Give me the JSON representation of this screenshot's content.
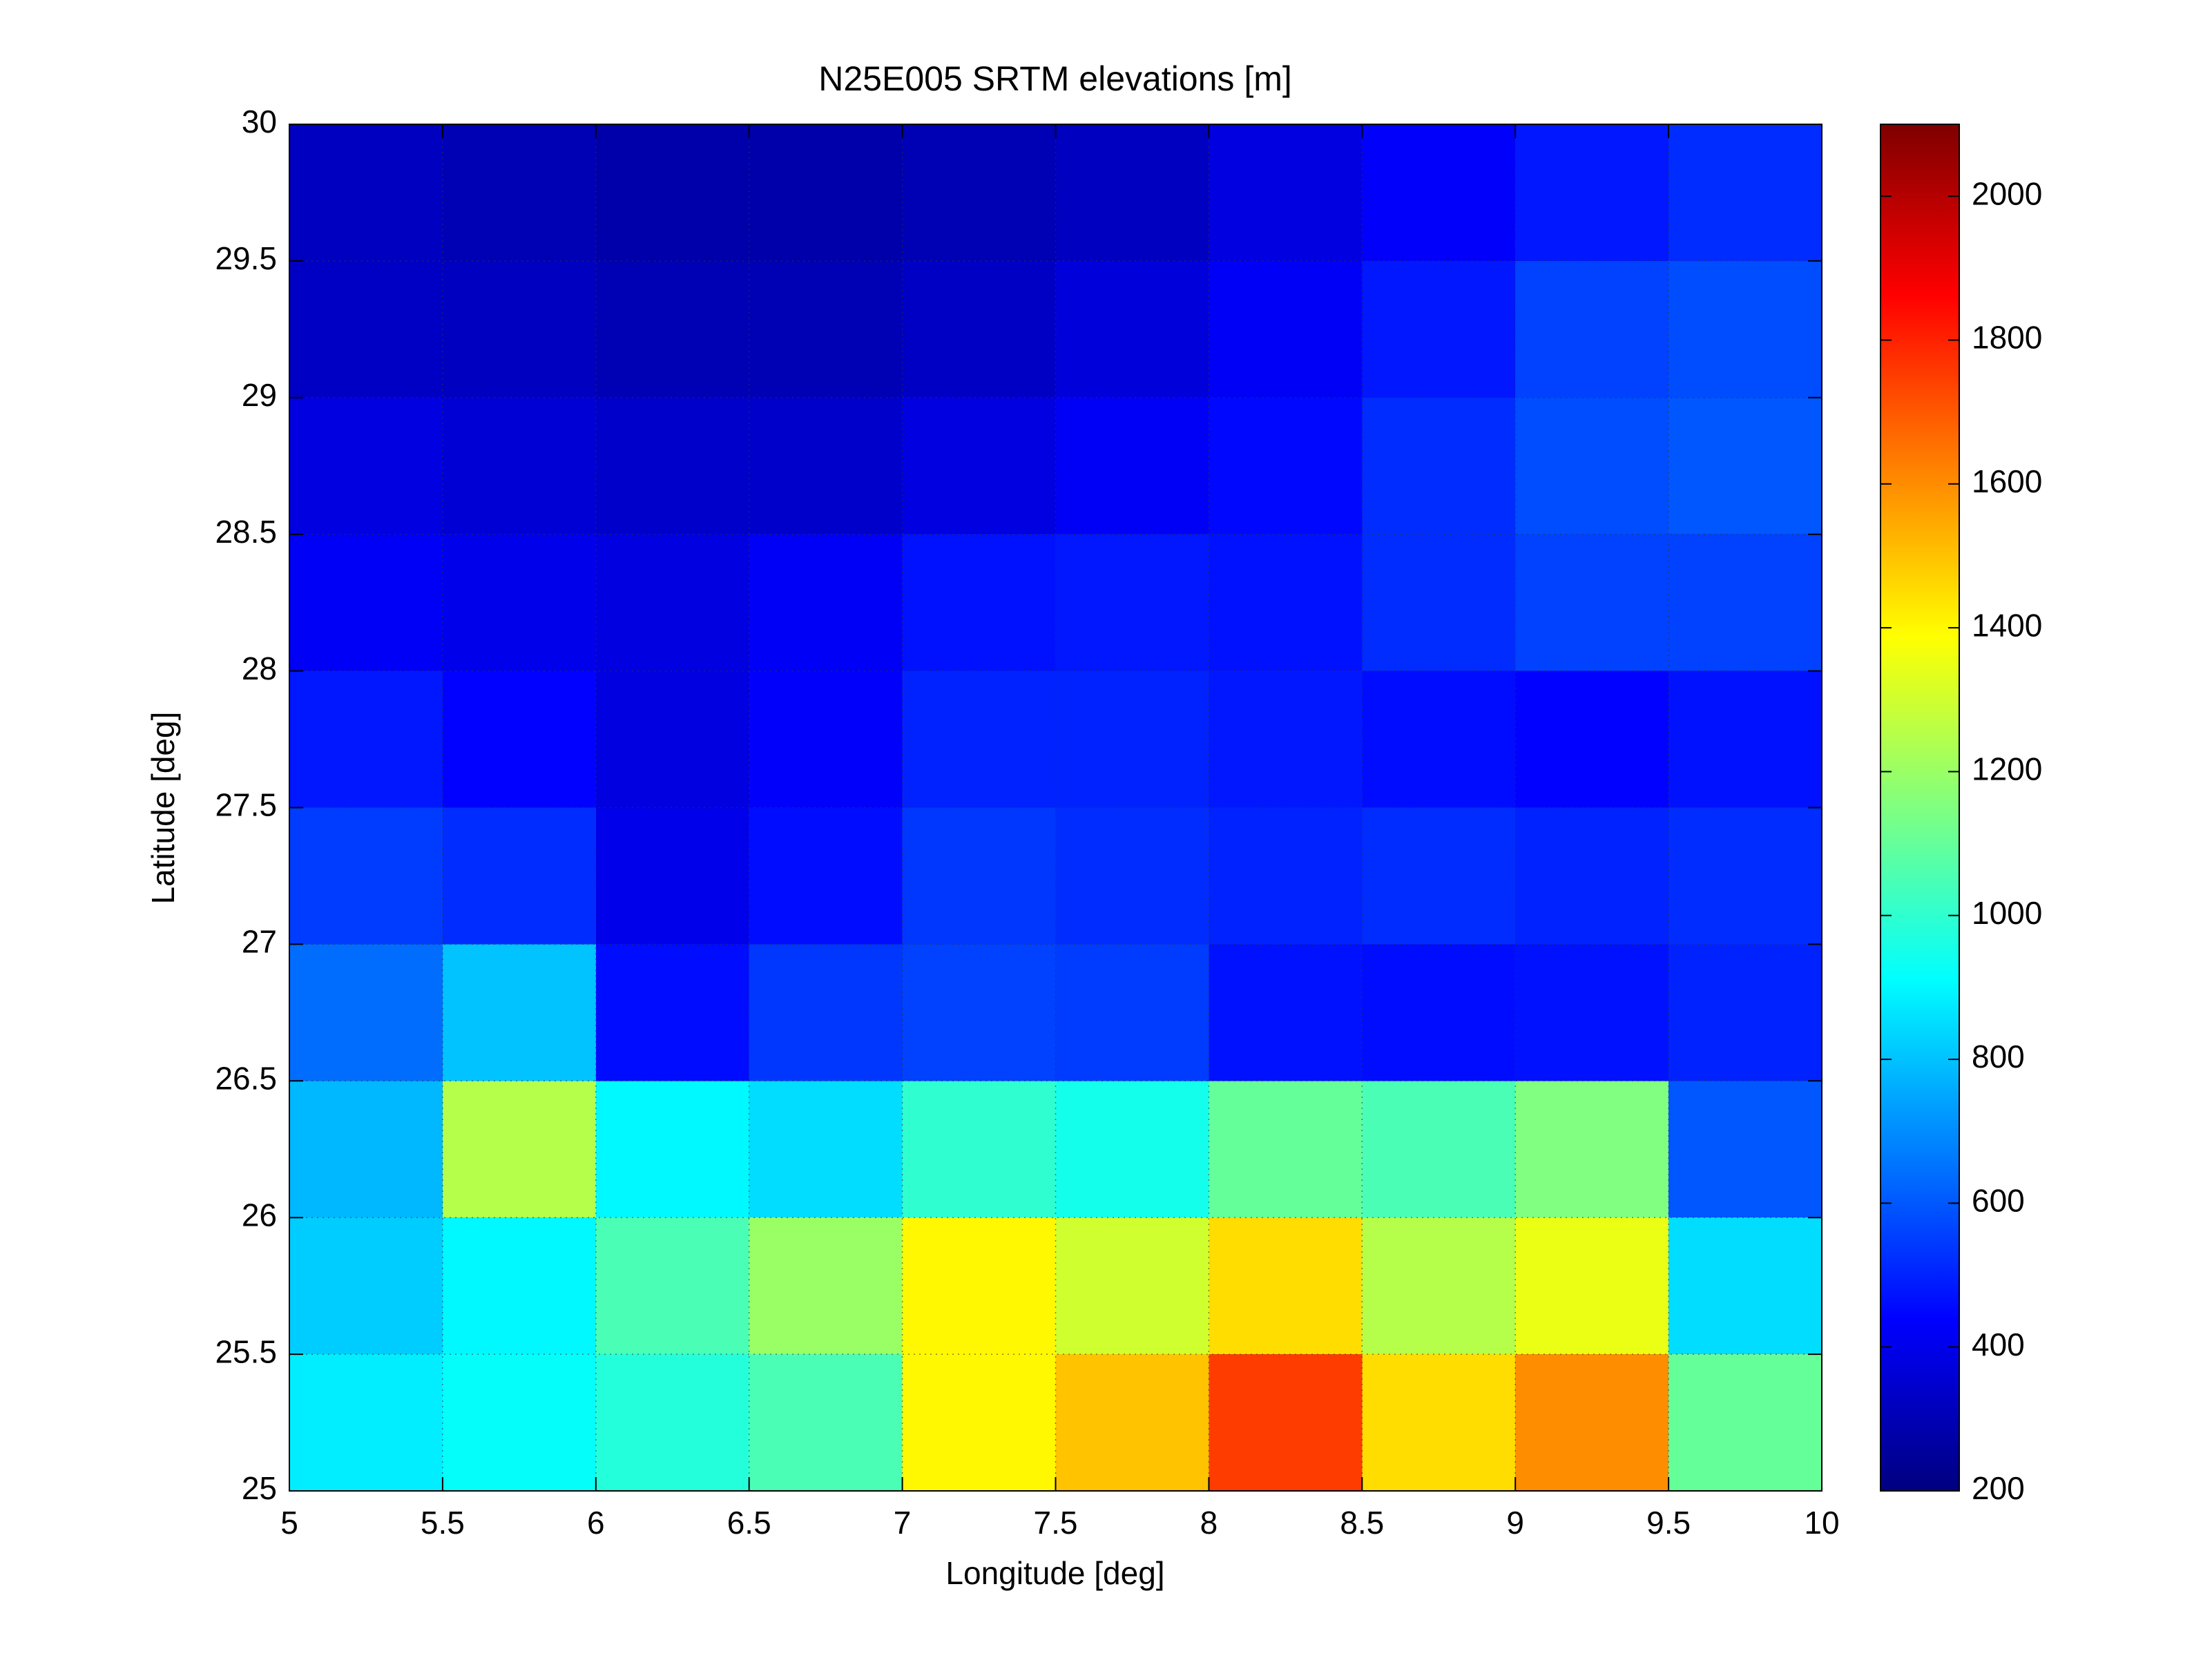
{
  "chart_data": {
    "type": "heatmap",
    "title": "N25E005 SRTM elevations [m]",
    "x_label": "Longitude [deg]",
    "y_label": "Latitude [deg]",
    "colormap": "jet",
    "grid": true,
    "x": [
      5.25,
      5.75,
      6.25,
      6.75,
      7.25,
      7.75,
      8.25,
      8.75,
      9.25,
      9.75
    ],
    "y": [
      29.75,
      29.25,
      28.75,
      28.25,
      27.75,
      27.25,
      26.75,
      26.25,
      25.75,
      25.25
    ],
    "z": [
      [
        320,
        300,
        280,
        280,
        300,
        320,
        380,
        430,
        480,
        520
      ],
      [
        330,
        320,
        300,
        300,
        330,
        370,
        420,
        480,
        560,
        580
      ],
      [
        380,
        360,
        340,
        340,
        380,
        420,
        450,
        520,
        580,
        600
      ],
      [
        420,
        400,
        380,
        420,
        470,
        480,
        470,
        520,
        560,
        560
      ],
      [
        480,
        440,
        380,
        430,
        500,
        500,
        480,
        460,
        440,
        470
      ],
      [
        550,
        520,
        400,
        460,
        540,
        520,
        500,
        520,
        500,
        520
      ],
      [
        640,
        800,
        460,
        540,
        560,
        550,
        470,
        460,
        470,
        500
      ],
      [
        780,
        1250,
        900,
        850,
        1000,
        950,
        1100,
        1050,
        1150,
        600
      ],
      [
        820,
        900,
        1050,
        1200,
        1400,
        1300,
        1450,
        1250,
        1350,
        850
      ],
      [
        880,
        920,
        980,
        1050,
        1400,
        1500,
        1750,
        1450,
        1600,
        1100
      ]
    ],
    "xlim": [
      5,
      10
    ],
    "ylim": [
      25,
      30
    ],
    "xticks": [
      5,
      5.5,
      6,
      6.5,
      7,
      7.5,
      8,
      8.5,
      9,
      9.5,
      10
    ],
    "yticks": [
      25,
      25.5,
      26,
      26.5,
      27,
      27.5,
      28,
      28.5,
      29,
      29.5,
      30
    ],
    "clim": [
      200,
      2100
    ],
    "cticks": [
      200,
      400,
      600,
      800,
      1000,
      1200,
      1400,
      1600,
      1800,
      2000
    ]
  }
}
